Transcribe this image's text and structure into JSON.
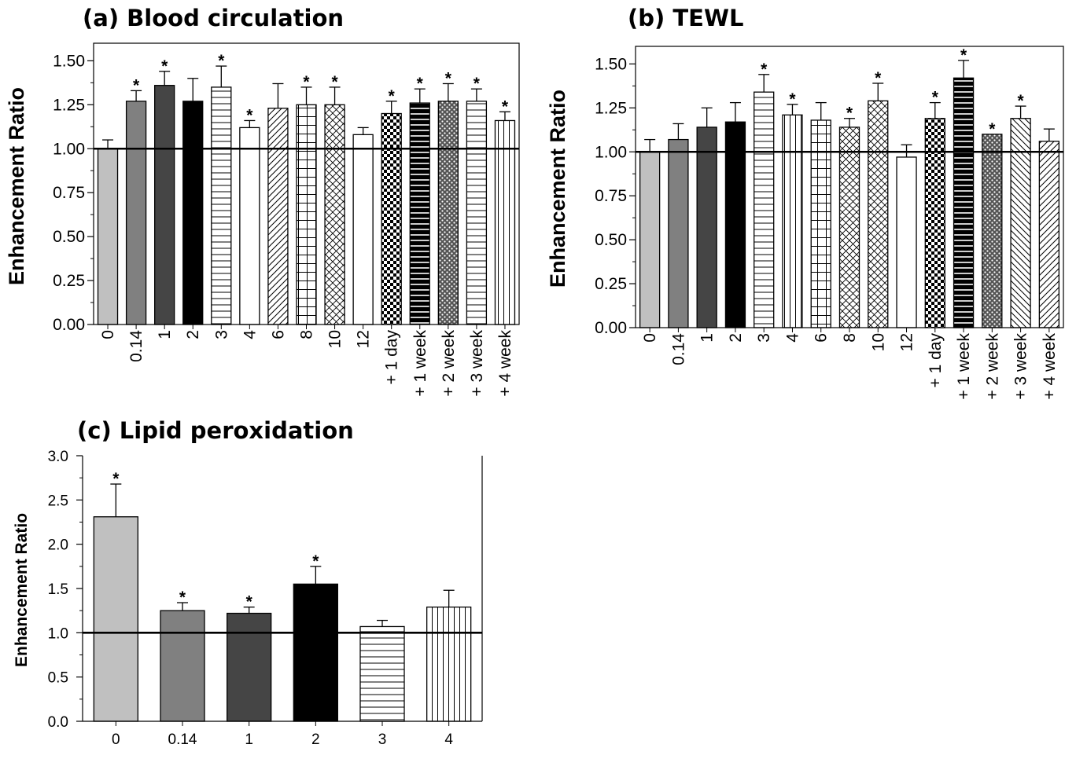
{
  "chart_data": [
    {
      "type": "bar",
      "title": "(a) Blood circulation",
      "ylabel": "Enhancement Ratio",
      "xlabel": "",
      "ylim": [
        0,
        1.6
      ],
      "yticks": [
        "0.00",
        "0.25",
        "0.50",
        "0.75",
        "1.00",
        "1.25",
        "1.50"
      ],
      "reference_line": 1.0,
      "categories": [
        "0",
        "0.14",
        "1",
        "2",
        "3",
        "4",
        "6",
        "8",
        "10",
        "12",
        "+ 1 day",
        "+ 1 week",
        "+ 2 week",
        "+ 3 week",
        "+ 4 week"
      ],
      "values": [
        1.0,
        1.27,
        1.36,
        1.27,
        1.35,
        1.12,
        1.23,
        1.25,
        1.25,
        1.08,
        1.2,
        1.26,
        1.27,
        1.27,
        1.16
      ],
      "errors": [
        0.05,
        0.06,
        0.08,
        0.13,
        0.12,
        0.04,
        0.14,
        0.1,
        0.1,
        0.04,
        0.07,
        0.08,
        0.1,
        0.07,
        0.05
      ],
      "significant": [
        false,
        true,
        true,
        false,
        true,
        true,
        false,
        true,
        true,
        false,
        true,
        true,
        true,
        true,
        true
      ],
      "significance_mark": "*",
      "grid": false
    },
    {
      "type": "bar",
      "title": "(b) TEWL",
      "ylabel": "Enhancement Ratio",
      "xlabel": "",
      "ylim": [
        0,
        1.6
      ],
      "yticks": [
        "0.00",
        "0.25",
        "0.50",
        "0.75",
        "1.00",
        "1.25",
        "1.50"
      ],
      "reference_line": 1.0,
      "categories": [
        "0",
        "0.14",
        "1",
        "2",
        "3",
        "4",
        "6",
        "8",
        "10",
        "12",
        "+ 1 day",
        "+ 1 week",
        "+ 2 week",
        "+ 3 week",
        "+ 4 week"
      ],
      "values": [
        1.0,
        1.07,
        1.14,
        1.17,
        1.34,
        1.21,
        1.18,
        1.14,
        1.29,
        0.97,
        1.19,
        1.42,
        1.1,
        1.19,
        1.06
      ],
      "errors": [
        0.07,
        0.09,
        0.11,
        0.11,
        0.1,
        0.06,
        0.1,
        0.05,
        0.1,
        0.07,
        0.09,
        0.1,
        0.0,
        0.07,
        0.07
      ],
      "significant": [
        false,
        false,
        false,
        false,
        true,
        true,
        false,
        true,
        true,
        false,
        true,
        true,
        true,
        true,
        false
      ],
      "significance_mark": "*",
      "grid": false
    },
    {
      "type": "bar",
      "title": "(c) Lipid peroxidation",
      "ylabel": "Enhancement Ratio",
      "xlabel": "",
      "ylim": [
        0,
        3.0
      ],
      "yticks": [
        "0.0",
        "0.5",
        "1.0",
        "1.5",
        "2.0",
        "2.5",
        "3.0"
      ],
      "reference_line": 1.0,
      "categories": [
        "0",
        "0.14",
        "1",
        "2",
        "3",
        "4"
      ],
      "values": [
        2.31,
        1.25,
        1.22,
        1.55,
        1.07,
        1.29
      ],
      "errors": [
        0.37,
        0.09,
        0.07,
        0.2,
        0.07,
        0.19
      ],
      "significant": [
        true,
        true,
        true,
        true,
        false,
        false
      ],
      "significance_mark": "*",
      "grid": false
    }
  ]
}
